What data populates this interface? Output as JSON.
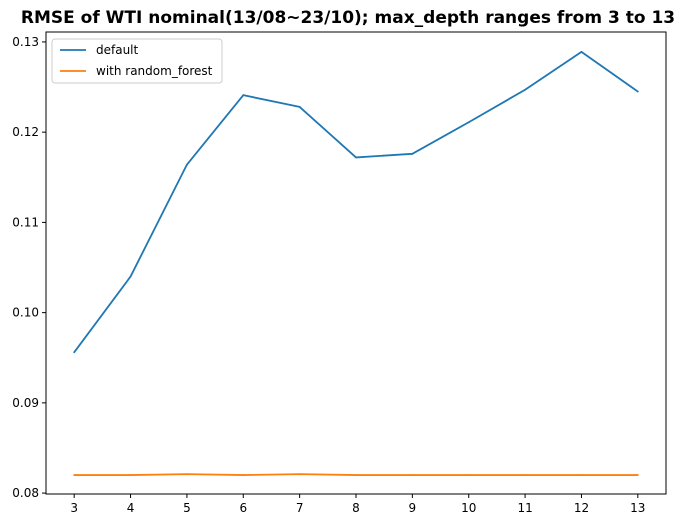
{
  "chart_data": {
    "type": "line",
    "title": "RMSE of WTI nominal(13/08~23/10); max_depth ranges from 3 to 13",
    "xlabel": "",
    "ylabel": "",
    "x": [
      3,
      4,
      5,
      6,
      7,
      8,
      9,
      10,
      11,
      12,
      13
    ],
    "xlim": [
      2.5,
      13.5
    ],
    "ylim": [
      0.0799,
      0.1311
    ],
    "xticks": [
      "3",
      "4",
      "5",
      "6",
      "7",
      "8",
      "9",
      "10",
      "11",
      "12",
      "13"
    ],
    "yticks": [
      0.08,
      0.09,
      0.1,
      0.11,
      0.12,
      0.13
    ],
    "ytick_labels": [
      "0.08",
      "0.09",
      "0.10",
      "0.11",
      "0.12",
      "0.13"
    ],
    "grid": false,
    "legend_position": "top-left",
    "series": [
      {
        "name": "default",
        "color": "#1f77b4",
        "values": [
          0.0956,
          0.104,
          0.1164,
          0.1241,
          0.1228,
          0.1172,
          0.1176,
          0.1211,
          0.1247,
          0.1289,
          0.1245
        ]
      },
      {
        "name": "with random_forest",
        "color": "#ff7f0e",
        "values": [
          0.082,
          0.082,
          0.0821,
          0.082,
          0.0821,
          0.082,
          0.082,
          0.082,
          0.082,
          0.082,
          0.082
        ]
      }
    ]
  }
}
